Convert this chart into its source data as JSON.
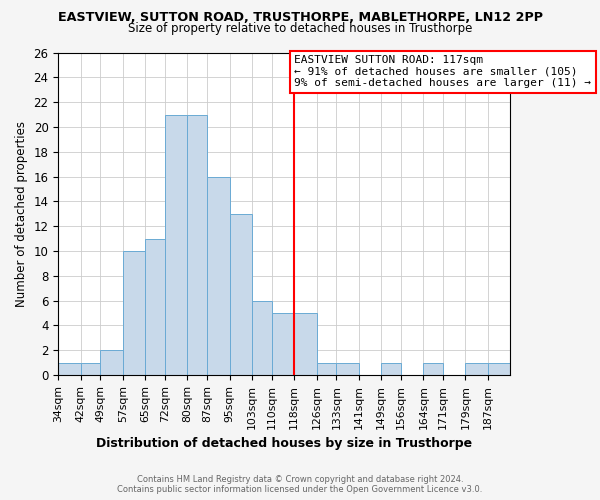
{
  "title": "EASTVIEW, SUTTON ROAD, TRUSTHORPE, MABLETHORPE, LN12 2PP",
  "subtitle": "Size of property relative to detached houses in Trusthorpe",
  "xlabel": "Distribution of detached houses by size in Trusthorpe",
  "ylabel": "Number of detached properties",
  "bin_labels": [
    "34sqm",
    "42sqm",
    "49sqm",
    "57sqm",
    "65sqm",
    "72sqm",
    "80sqm",
    "87sqm",
    "95sqm",
    "103sqm",
    "110sqm",
    "118sqm",
    "126sqm",
    "133sqm",
    "141sqm",
    "149sqm",
    "156sqm",
    "164sqm",
    "171sqm",
    "179sqm",
    "187sqm"
  ],
  "bin_edges": [
    34,
    42,
    49,
    57,
    65,
    72,
    80,
    87,
    95,
    103,
    110,
    118,
    126,
    133,
    141,
    149,
    156,
    164,
    171,
    179,
    187,
    195
  ],
  "counts": [
    1,
    1,
    2,
    10,
    11,
    21,
    21,
    16,
    13,
    6,
    5,
    5,
    1,
    1,
    0,
    1,
    0,
    1,
    0,
    1,
    1
  ],
  "bar_color": "#c8d9ea",
  "bar_edgecolor": "#6aaad4",
  "reference_line_x": 118,
  "reference_line_color": "red",
  "annotation_title": "EASTVIEW SUTTON ROAD: 117sqm",
  "annotation_line1": "← 91% of detached houses are smaller (105)",
  "annotation_line2": "9% of semi-detached houses are larger (11) →",
  "annotation_box_edgecolor": "red",
  "annotation_box_facecolor": "white",
  "ylim": [
    0,
    26
  ],
  "yticks": [
    0,
    2,
    4,
    6,
    8,
    10,
    12,
    14,
    16,
    18,
    20,
    22,
    24,
    26
  ],
  "footer_line1": "Contains HM Land Registry data © Crown copyright and database right 2024.",
  "footer_line2": "Contains public sector information licensed under the Open Government Licence v3.0.",
  "bg_color": "#f5f5f5",
  "plot_bg_color": "#ffffff",
  "grid_color": "#cccccc"
}
